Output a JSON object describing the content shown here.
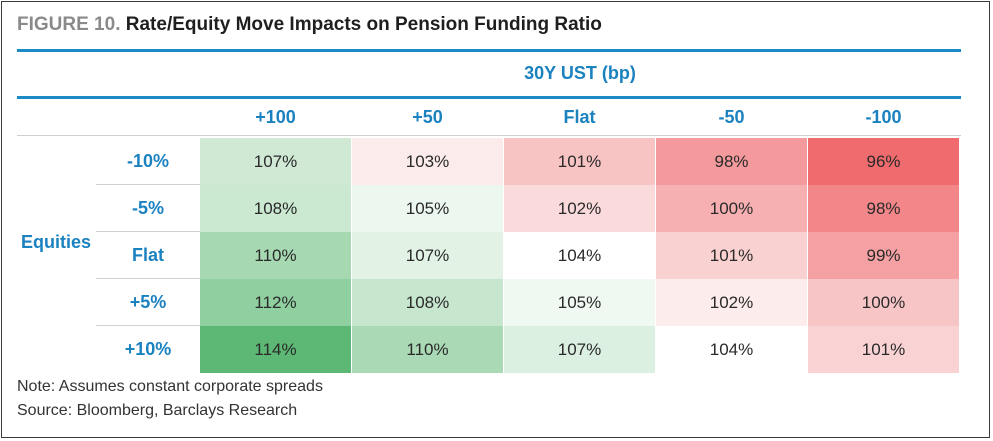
{
  "figure": {
    "label": "FIGURE 10.",
    "title": "Rate/Equity Move Impacts on Pension Funding Ratio"
  },
  "chart_data": {
    "type": "table",
    "column_group_label": "30Y UST (bp)",
    "row_group_label": "Equities",
    "columns": [
      "+100",
      "+50",
      "Flat",
      "-50",
      "-100"
    ],
    "rows": [
      {
        "label": "-10%",
        "values": [
          "107%",
          "103%",
          "101%",
          "98%",
          "96%"
        ]
      },
      {
        "label": "-5%",
        "values": [
          "108%",
          "105%",
          "102%",
          "100%",
          "98%"
        ]
      },
      {
        "label": "Flat",
        "values": [
          "110%",
          "107%",
          "104%",
          "101%",
          "99%"
        ]
      },
      {
        "label": "+5%",
        "values": [
          "112%",
          "108%",
          "105%",
          "102%",
          "100%"
        ]
      },
      {
        "label": "+10%",
        "values": [
          "114%",
          "110%",
          "107%",
          "104%",
          "101%"
        ]
      }
    ],
    "cell_colors": [
      [
        "#cfe9d5",
        "#fcebeb",
        "#f8c3c3",
        "#f49a9c",
        "#ef6b6e"
      ],
      [
        "#cbe8d1",
        "#ecf7ef",
        "#fadada",
        "#f6b0b1",
        "#f38688"
      ],
      [
        "#a6d8b2",
        "#e2f3e6",
        "#ffffff",
        "#f9d1d1",
        "#f5a1a3"
      ],
      [
        "#8fcfa0",
        "#c7e6ce",
        "#eff8f1",
        "#fcecec",
        "#f8c5c6"
      ],
      [
        "#5cb874",
        "#a9dab5",
        "#dcf0e1",
        "#ffffff",
        "#f9d3d4"
      ]
    ]
  },
  "notes": {
    "note": "Note: Assumes constant corporate spreads",
    "source": "Source: Bloomberg, Barclays Research"
  }
}
